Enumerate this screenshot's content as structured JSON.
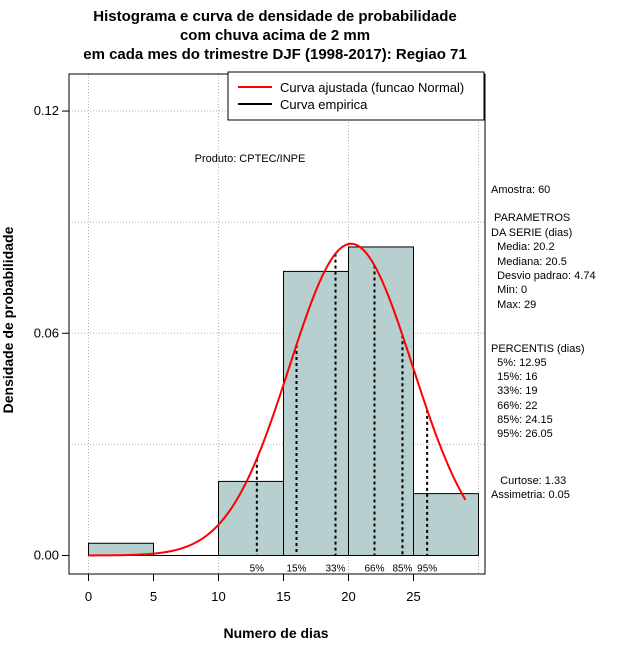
{
  "chart_data": {
    "type": "bar",
    "title": [
      "Histograma e curva de densidade de probabilidade",
      "com chuva acima de 2 mm",
      "em cada mes do trimestre DJF (1998-2017): Regiao 71"
    ],
    "xlabel": "Numero de dias",
    "ylabel": "Densidade de probabilidade",
    "xlim": [
      -1.5,
      30.5
    ],
    "ylim": [
      -0.005,
      0.13
    ],
    "x_ticks": [
      "0",
      "5",
      "10",
      "15",
      "20",
      "25"
    ],
    "x_tick_values": [
      0,
      5,
      10,
      15,
      20,
      25
    ],
    "y_ticks": [
      "0.00",
      "0.06",
      "0.12"
    ],
    "y_tick_values": [
      0,
      0.06,
      0.12
    ],
    "grid_x": [
      0,
      10,
      20,
      30
    ],
    "grid_y": [
      0.03,
      0.06,
      0.09,
      0.12
    ],
    "bins": [
      {
        "from": 0,
        "to": 5,
        "density": 0.0033
      },
      {
        "from": 5,
        "to": 10,
        "density": 0
      },
      {
        "from": 10,
        "to": 15,
        "density": 0.02
      },
      {
        "from": 15,
        "to": 20,
        "density": 0.0767
      },
      {
        "from": 20,
        "to": 25,
        "density": 0.0833
      },
      {
        "from": 25,
        "to": 30,
        "density": 0.0167
      }
    ],
    "normal_curve": {
      "mean": 20.2,
      "sd": 4.74,
      "x_from": 0,
      "x_to": 29
    },
    "percentiles": [
      {
        "label": "5%",
        "x": 12.95
      },
      {
        "label": "15%",
        "x": 16
      },
      {
        "label": "33%",
        "x": 19
      },
      {
        "label": "66%",
        "x": 22
      },
      {
        "label": "85%",
        "x": 24.15
      },
      {
        "label": "95%",
        "x": 26.05
      }
    ],
    "legend": {
      "position": "top-right",
      "entries": [
        {
          "label": "Curva ajustada (funcao Normal)",
          "color": "#ff0000"
        },
        {
          "label": "Curva empirica",
          "color": "#000000"
        }
      ]
    },
    "annotation": "Produto: CPTEC/INPE",
    "colors": {
      "bar_fill": "#b7cfcf",
      "bar_stroke": "#000000",
      "curve": "#ff0000",
      "grid": "#b0b0b0"
    }
  },
  "side_panel": {
    "amostra": "Amostra: 60",
    "parametros_title_1": " PARAMETROS",
    "parametros_title_2": "DA SERIE (dias)",
    "media": "  Media: 20.2",
    "mediana": "  Mediana: 20.5",
    "desvio": "  Desvio padrao: 4.74",
    "min": "  Min: 0",
    "max": "  Max: 29",
    "percentis_title": "PERCENTIS (dias)",
    "p5": "  5%: 12.95",
    "p15": "  15%: 16",
    "p33": "  33%: 19",
    "p66": "  66%: 22",
    "p85": "  85%: 24.15",
    "p95": "  95%: 26.05",
    "curtose": "   Curtose: 1.33",
    "assimetria": "Assimetria: 0.05"
  }
}
